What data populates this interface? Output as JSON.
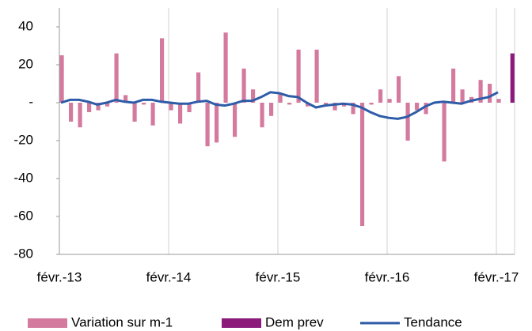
{
  "chart_data": {
    "type": "bar-line",
    "categories": [
      "févr.-13",
      null,
      null,
      null,
      null,
      null,
      null,
      null,
      null,
      null,
      null,
      null,
      "févr.-14",
      null,
      null,
      null,
      null,
      null,
      null,
      null,
      null,
      null,
      null,
      null,
      "févr.-15",
      null,
      null,
      null,
      null,
      null,
      null,
      null,
      null,
      null,
      null,
      null,
      "févr.-16",
      null,
      null,
      null,
      null,
      null,
      null,
      null,
      null,
      null,
      null,
      null,
      "févr.-17",
      null
    ],
    "series": [
      {
        "name": "Variation sur m-1",
        "type": "bar",
        "color": "#d47a9f",
        "values": [
          25,
          -10,
          -13,
          -5,
          -4,
          -2,
          26,
          4,
          -10,
          -1,
          -12,
          34,
          -4,
          -11,
          -5,
          16,
          -23,
          -21,
          37,
          -18,
          18,
          7,
          -13,
          -7,
          5,
          -1,
          28,
          -2,
          28,
          -1,
          -4,
          -2,
          -6,
          -65,
          -1,
          7,
          2,
          14,
          -20,
          -4,
          -6,
          0,
          -31,
          18,
          7,
          3,
          12,
          10,
          2,
          null
        ]
      },
      {
        "name": "Dem prev",
        "type": "bar",
        "color": "#8b1a7a",
        "values": [
          null,
          null,
          null,
          null,
          null,
          null,
          null,
          null,
          null,
          null,
          null,
          null,
          null,
          null,
          null,
          null,
          null,
          null,
          null,
          null,
          null,
          null,
          null,
          null,
          null,
          null,
          null,
          null,
          null,
          null,
          null,
          null,
          null,
          null,
          null,
          null,
          null,
          null,
          null,
          null,
          null,
          null,
          null,
          null,
          null,
          null,
          null,
          null,
          null,
          26
        ]
      },
      {
        "name": "Tendance",
        "type": "line",
        "color": "#2f5ca8",
        "values": [
          0,
          1.5,
          1.5,
          0.5,
          -1,
          0,
          1.5,
          0.5,
          0,
          1.5,
          1.5,
          0.5,
          0,
          -0.5,
          -0.5,
          0.5,
          1,
          -1,
          -1.5,
          -0.5,
          1,
          1,
          3,
          5.5,
          5,
          3.5,
          3,
          0,
          -2.5,
          -1.5,
          -1,
          -0.5,
          -1,
          -2.5,
          -5,
          -7,
          -8,
          -8.5,
          -7.5,
          -5,
          -2,
          0,
          0.5,
          0,
          -0.5,
          1,
          2,
          3,
          5.5,
          null
        ]
      }
    ],
    "ylim": [
      -80,
      50
    ],
    "yticks": [
      -80,
      -60,
      -40,
      -20,
      {
        "value": 0,
        "label": "-"
      },
      20,
      40
    ],
    "xgrid": true,
    "legend": "bottom"
  }
}
